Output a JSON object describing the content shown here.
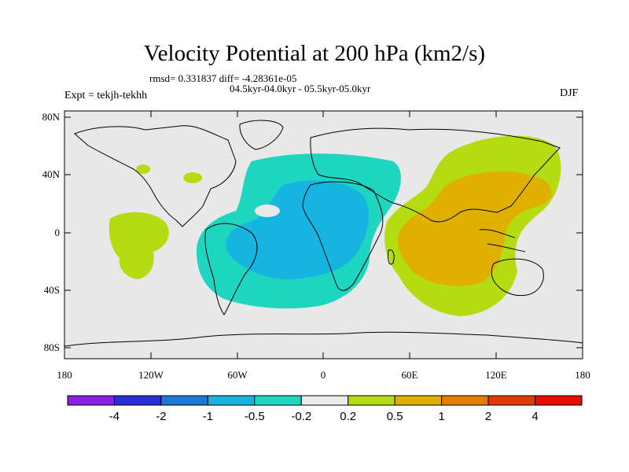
{
  "title": "Velocity Potential at 200 hPa (km2/s)",
  "stats": "rmsd= 0.331837 diff= -4.28361e-05",
  "periods": "04.5kyr-04.0kyr - 05.5kyr-05.0kyr",
  "experiment": "Expt = tekjh-tekhh",
  "season": "DJF",
  "map": {
    "lat_labels": [
      "80N",
      "40N",
      "0",
      "40S",
      "80S"
    ],
    "lon_labels": [
      "180",
      "120W",
      "60W",
      "0",
      "60E",
      "120E",
      "180"
    ]
  },
  "colorbar": {
    "colors": [
      "#8a1fe6",
      "#2a2ed6",
      "#1a78d8",
      "#16b4e0",
      "#1ed6c0",
      "#ececec",
      "#b5dc10",
      "#e0b000",
      "#e67c00",
      "#e03c00",
      "#e60c00"
    ],
    "labels": [
      "-4",
      "-2",
      "-1",
      "-0.5",
      "-0.2",
      "0.2",
      "0.5",
      "1",
      "2",
      "4"
    ]
  }
}
